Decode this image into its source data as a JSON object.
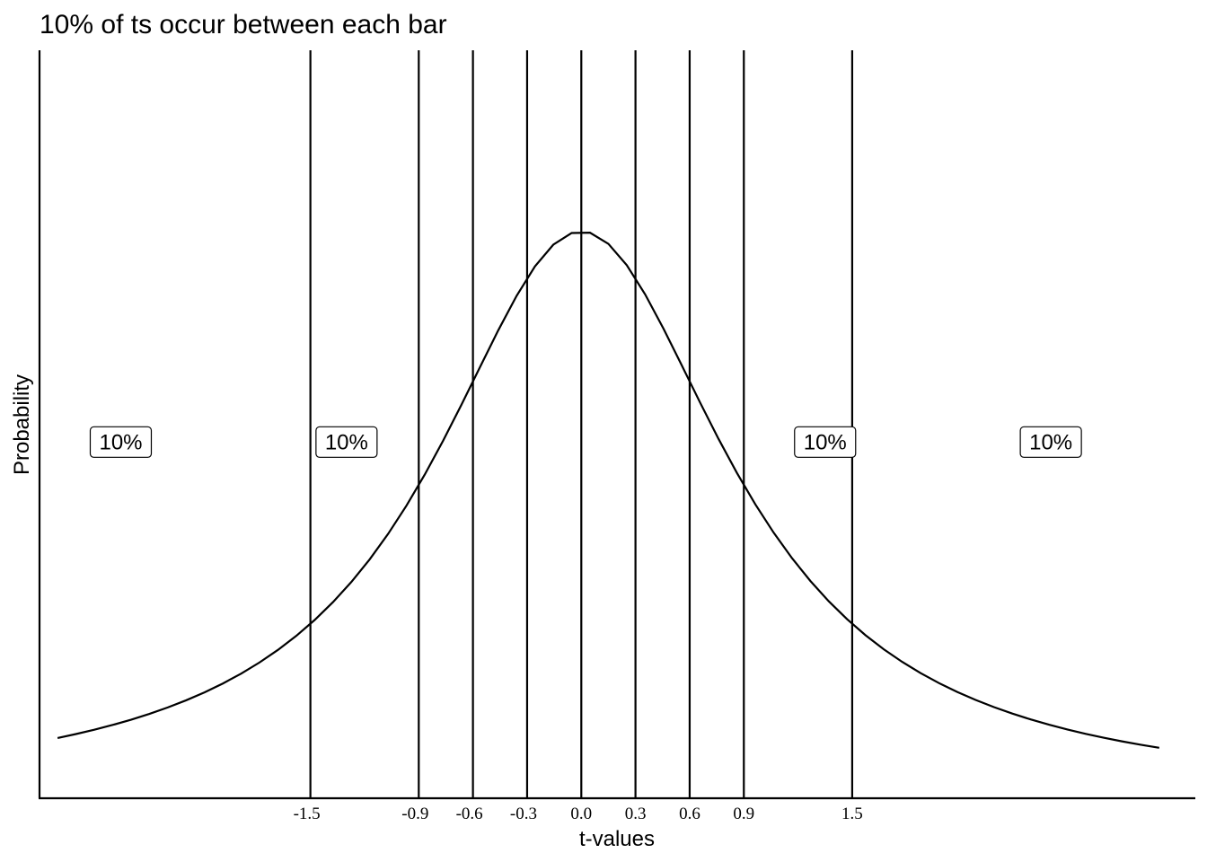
{
  "chart_data": {
    "type": "line",
    "title": "10% of ts occur between each bar",
    "xlabel": "t-values",
    "ylabel": "Probability",
    "xlim": [
      -3.0,
      3.4
    ],
    "ylim": [
      0,
      0.42
    ],
    "distribution": "t",
    "degrees_of_freedom": 1,
    "curve_x_range": [
      -2.9,
      3.2
    ],
    "vlines": [
      -1.5,
      -0.9,
      -0.6,
      -0.3,
      0.0,
      0.3,
      0.6,
      0.9,
      1.5
    ],
    "tick_labels": [
      "-1.5",
      "-0.9",
      "-0.6",
      "-0.3",
      "0.0",
      "0.3",
      "0.6",
      "0.9",
      "1.5"
    ],
    "annotations": [
      {
        "x": -2.55,
        "label": "10%"
      },
      {
        "x": -1.3,
        "label": "10%"
      },
      {
        "x": 1.35,
        "label": "10%"
      },
      {
        "x": 2.6,
        "label": "10%"
      }
    ],
    "annotation_y": 0.2,
    "grid": false,
    "colors": {
      "line": "#000000",
      "background": "#ffffff"
    }
  }
}
